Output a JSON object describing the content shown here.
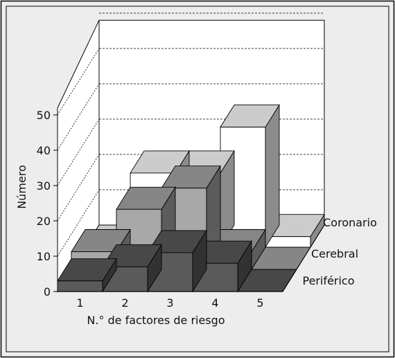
{
  "chart_data": {
    "type": "bar",
    "subtype": "3d-stacked-depth",
    "title": "",
    "xlabel": "N.° de factores de riesgo",
    "ylabel": "Número",
    "categories": [
      "1",
      "2",
      "3",
      "4",
      "5"
    ],
    "yticks": [
      "0",
      "10",
      "20",
      "30",
      "40",
      "50"
    ],
    "ylim": [
      0,
      50
    ],
    "grid": "dashed",
    "legend": "right, labels at depth rows",
    "series": [
      {
        "name": "Periférico",
        "values": [
          3,
          7,
          11,
          8,
          0
        ],
        "color": "#5a5a5a"
      },
      {
        "name": "Cerebral",
        "values": [
          5,
          17,
          23,
          5,
          0
        ],
        "color": "#a8a8a8"
      },
      {
        "name": "Coronario",
        "values": [
          0,
          21,
          21,
          34,
          3
        ],
        "color": "#ffffff"
      }
    ]
  },
  "colors": {
    "background": "#ededed",
    "panel": "#ffffff",
    "frame": "#000000"
  }
}
